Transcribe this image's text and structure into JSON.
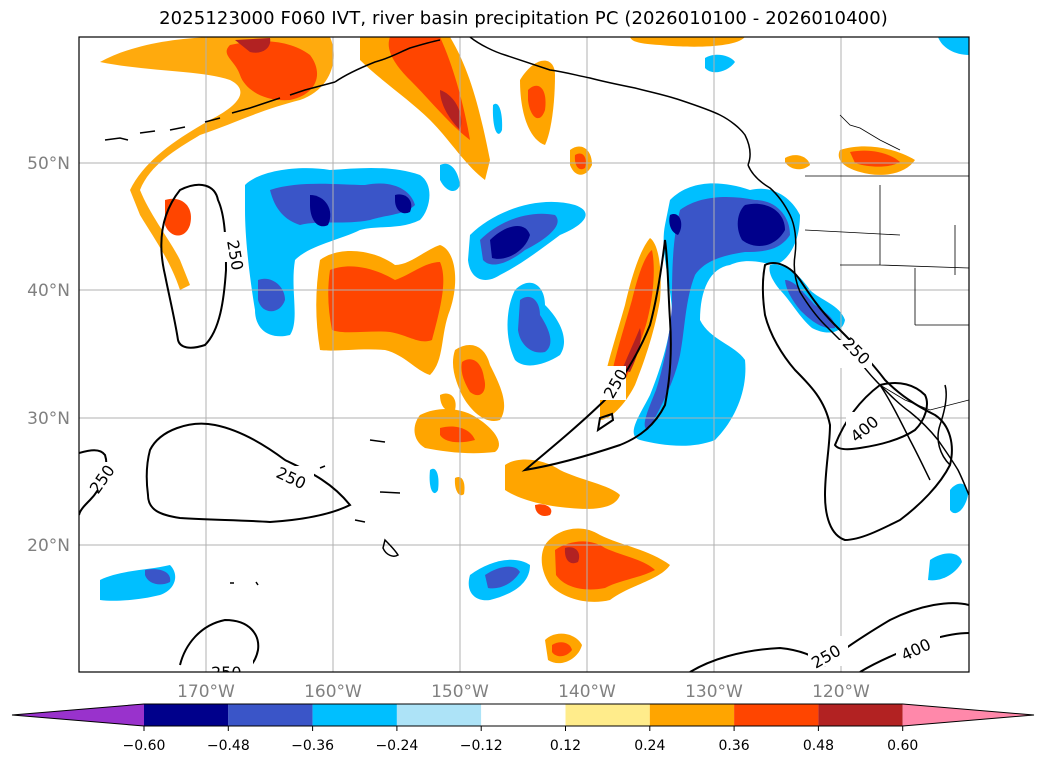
{
  "title": "2025123000 F060 IVT, river basin precipitation PC (2026010100 - 2026010400)",
  "lat_labels": [
    "50°N",
    "40°N",
    "30°N",
    "20°N"
  ],
  "lon_labels": [
    "170°W",
    "160°W",
    "150°W",
    "140°W",
    "130°W",
    "120°W"
  ],
  "lat_values": [
    50,
    40,
    30,
    20
  ],
  "lon_values": [
    -170,
    -160,
    -150,
    -140,
    -130,
    -120
  ],
  "extent": {
    "lon_min": -180,
    "lon_max": -110,
    "lat_min": 10,
    "lat_max": 60
  },
  "colorbar": {
    "ticks": [
      "−0.60",
      "−0.48",
      "−0.36",
      "−0.24",
      "−0.12",
      "0.12",
      "0.24",
      "0.36",
      "0.48",
      "0.60"
    ],
    "colors": [
      "#9932cc",
      "#00008b",
      "#3a55c8",
      "#00bfff",
      "#ade3f7",
      "#ffffff",
      "#ffec8b",
      "#ffa500",
      "#ff4500",
      "#b22222",
      "#ff88aa"
    ]
  },
  "ivt_contour_labels": [
    {
      "text": "250"
    },
    {
      "text": "250"
    },
    {
      "text": "250"
    },
    {
      "text": "250"
    },
    {
      "text": "250"
    },
    {
      "text": "400"
    },
    {
      "text": "250"
    },
    {
      "text": "400"
    },
    {
      "text": "250"
    }
  ],
  "colors": {
    "grid": "#b0b0b0",
    "coast": "#000000",
    "contour": "#000000"
  }
}
